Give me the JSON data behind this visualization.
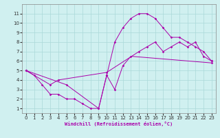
{
  "xlabel": "Windchill (Refroidissement éolien,°C)",
  "line1_x": [
    0,
    1,
    2,
    3,
    4,
    5,
    6,
    7,
    8,
    9,
    10,
    11,
    12,
    13,
    14,
    15,
    16,
    17,
    18,
    19,
    20,
    21,
    22,
    23
  ],
  "line1_y": [
    5,
    4.5,
    3.5,
    2.5,
    2.5,
    2.0,
    2.0,
    1.5,
    1.0,
    1.0,
    4.5,
    8.0,
    9.5,
    10.5,
    11.0,
    11.0,
    10.5,
    9.5,
    8.5,
    8.5,
    8.0,
    7.5,
    7.0,
    6.0
  ],
  "line2_x": [
    0,
    3,
    4,
    10,
    14,
    15,
    16,
    17,
    18,
    19,
    20,
    21,
    22,
    23
  ],
  "line2_y": [
    5,
    3.5,
    4.0,
    4.8,
    7.0,
    7.5,
    8.0,
    7.0,
    7.5,
    8.0,
    7.5,
    8.0,
    6.5,
    6.0
  ],
  "line3_x": [
    0,
    5,
    9,
    10,
    11,
    12,
    13,
    23
  ],
  "line3_y": [
    5,
    3.5,
    1.0,
    4.5,
    3.0,
    5.5,
    6.5,
    5.8
  ],
  "line_color": "#aa00aa",
  "bg_color": "#d0f0f0",
  "grid_color": "#aad8d8",
  "ylim_min": 0.5,
  "ylim_max": 12,
  "xlim_min": -0.5,
  "xlim_max": 23.5,
  "yticks": [
    1,
    2,
    3,
    4,
    5,
    6,
    7,
    8,
    9,
    10,
    11
  ],
  "xticks": [
    0,
    1,
    2,
    3,
    4,
    5,
    6,
    7,
    8,
    9,
    10,
    11,
    12,
    13,
    14,
    15,
    16,
    17,
    18,
    19,
    20,
    21,
    22,
    23
  ],
  "tick_fontsize": 5,
  "xlabel_fontsize": 5
}
